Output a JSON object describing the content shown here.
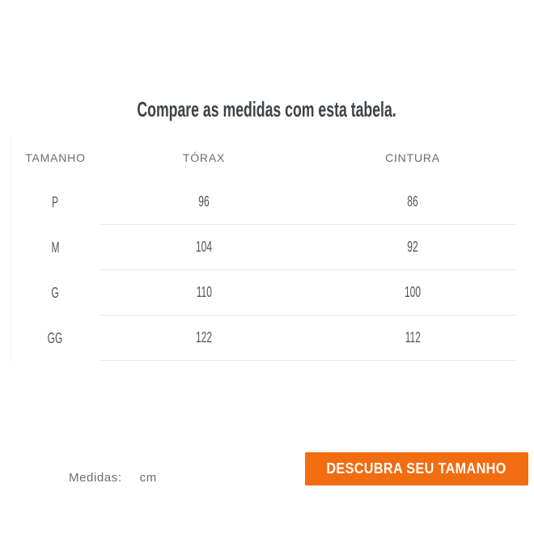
{
  "title": "Compare as medidas com esta tabela.",
  "table": {
    "columns": [
      "TAMANHO",
      "TÓRAX",
      "CINTURA"
    ],
    "rows": [
      {
        "size": "P",
        "torax": "96",
        "cintura": "86"
      },
      {
        "size": "M",
        "torax": "104",
        "cintura": "92"
      },
      {
        "size": "G",
        "torax": "110",
        "cintura": "100"
      },
      {
        "size": "GG",
        "torax": "122",
        "cintura": "112"
      }
    ]
  },
  "footer": {
    "measures_label": "Medidas:",
    "unit": "cm",
    "cta_label": "DESCUBRA SEU TAMANHO"
  },
  "colors": {
    "accent": "#F26C10",
    "title-text": "#3F4247",
    "header-text": "#6B6D70",
    "value-text": "#54565A",
    "divider": "#E9EAEB",
    "table-border": "#F1F1F1",
    "button-text": "#FFFFFF",
    "background": "#FFFFFF"
  }
}
